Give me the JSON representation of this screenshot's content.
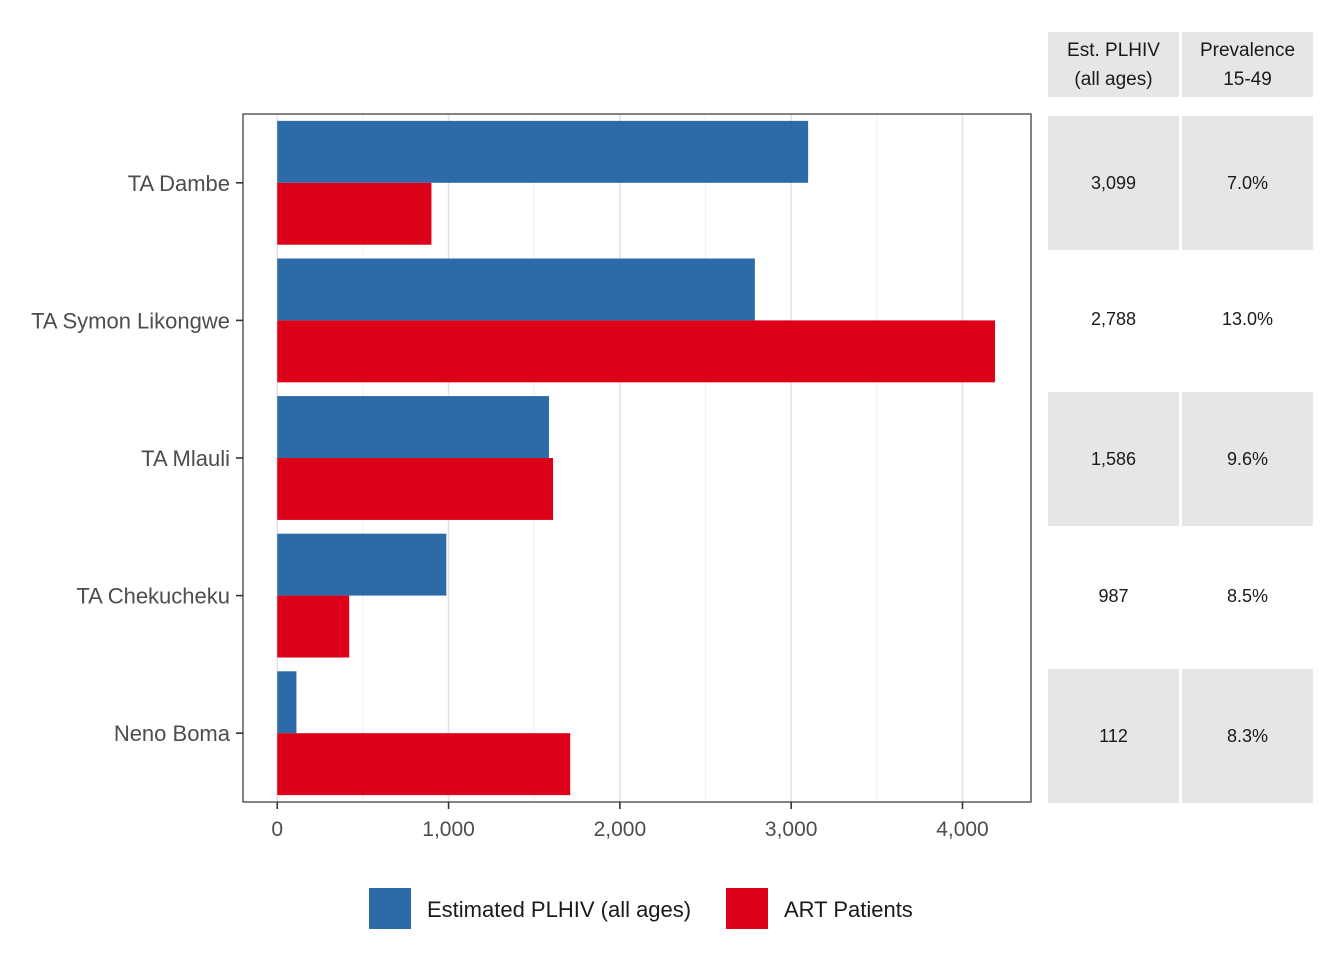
{
  "chart_data": {
    "type": "bar",
    "orientation": "horizontal",
    "categories": [
      "TA Dambe",
      "TA Symon Likongwe",
      "TA Mlauli",
      "TA Chekucheku",
      "Neno Boma"
    ],
    "series": [
      {
        "name": "Estimated PLHIV (all ages)",
        "color": "#2c6aa8",
        "values": [
          3099,
          2788,
          1586,
          987,
          112
        ]
      },
      {
        "name": "ART Patients",
        "color": "#dc0019",
        "values": [
          900,
          4190,
          1610,
          420,
          1710
        ]
      }
    ],
    "xlim": [
      -200,
      4400
    ],
    "x_ticks": [
      0,
      1000,
      2000,
      3000,
      4000
    ],
    "x_tick_labels": [
      "0",
      "1,000",
      "2,000",
      "3,000",
      "4,000"
    ],
    "grid": true,
    "legend_position": "bottom",
    "table": {
      "headers": [
        [
          "Est. PLHIV",
          "(all ages)"
        ],
        [
          "Prevalence",
          "15-49"
        ]
      ],
      "rows": [
        [
          "3,099",
          "7.0%"
        ],
        [
          "2,788",
          "13.0%"
        ],
        [
          "1,586",
          "9.6%"
        ],
        [
          "987",
          "8.5%"
        ],
        [
          "112",
          "8.3%"
        ]
      ]
    }
  }
}
